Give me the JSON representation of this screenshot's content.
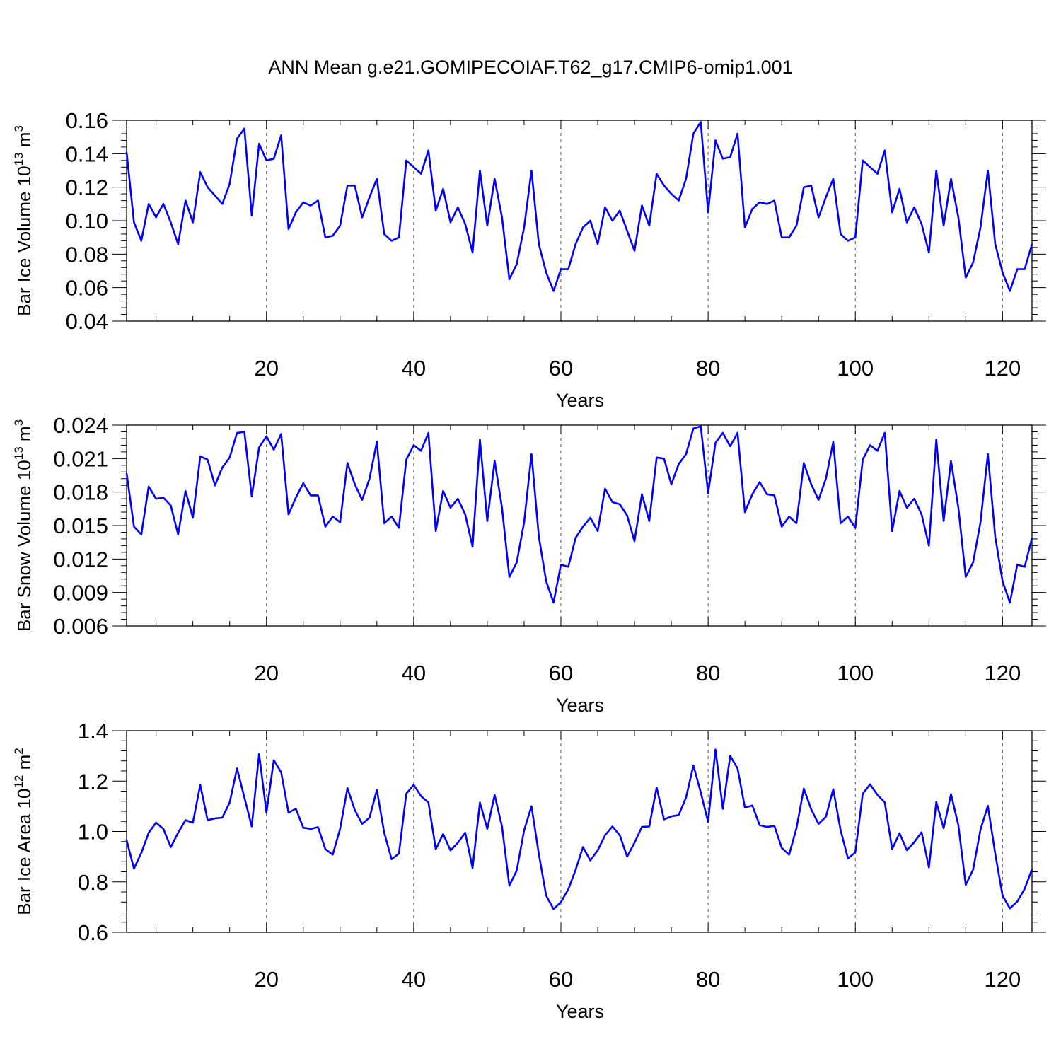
{
  "title": "ANN Mean g.e21.GOMIPECOIAF.T62_g17.CMIP6-omip1.001",
  "colors": {
    "series": "#0000ff",
    "axis": "#000000",
    "gridline": "#555555"
  },
  "chart_data": [
    {
      "type": "line",
      "ylabel_main": "Bar Ice Volume 10",
      "ylabel_sup1": "13",
      "ylabel_mid": " m",
      "ylabel_sup2": "3",
      "xlabel": "Years",
      "xlim": [
        1,
        124
      ],
      "ylim": [
        0.04,
        0.16
      ],
      "xticks": [
        20,
        40,
        60,
        80,
        100,
        120
      ],
      "yticks": [
        0.04,
        0.06,
        0.08,
        0.1,
        0.12,
        0.14,
        0.16
      ],
      "ytick_labels": [
        "0.04",
        "0.06",
        "0.08",
        "0.10",
        "0.12",
        "0.14",
        "0.16"
      ],
      "xtick_labels": [
        "20",
        "40",
        "60",
        "80",
        "100",
        "120"
      ],
      "grid": "dashed vertical at x ticks",
      "values": [
        0.141,
        0.099,
        0.088,
        0.11,
        0.102,
        0.11,
        0.099,
        0.086,
        0.112,
        0.099,
        0.129,
        0.12,
        0.115,
        0.11,
        0.122,
        0.149,
        0.155,
        0.103,
        0.146,
        0.136,
        0.137,
        0.151,
        0.095,
        0.105,
        0.111,
        0.109,
        0.112,
        0.09,
        0.091,
        0.097,
        0.121,
        0.121,
        0.102,
        0.114,
        0.125,
        0.092,
        0.088,
        0.09,
        0.136,
        0.132,
        0.128,
        0.142,
        0.106,
        0.119,
        0.099,
        0.108,
        0.098,
        0.081,
        0.13,
        0.097,
        0.125,
        0.102,
        0.065,
        0.074,
        0.096,
        0.13,
        0.086,
        0.069,
        0.058,
        0.071,
        0.071,
        0.086,
        0.096,
        0.1,
        0.086,
        0.108,
        0.1,
        0.106,
        0.094,
        0.082,
        0.109,
        0.097,
        0.128,
        0.121,
        0.116,
        0.112,
        0.125,
        0.152,
        0.159,
        0.105,
        0.148,
        0.137,
        0.138,
        0.152,
        0.096,
        0.107,
        0.111,
        0.11,
        0.112,
        0.09,
        0.09,
        0.097,
        0.12,
        0.121,
        0.102,
        0.114,
        0.125,
        0.092,
        0.088,
        0.09,
        0.136,
        0.132,
        0.128,
        0.142,
        0.105,
        0.119,
        0.099,
        0.108,
        0.098,
        0.081,
        0.13,
        0.097,
        0.125,
        0.102,
        0.066,
        0.075,
        0.096,
        0.13,
        0.086,
        0.069,
        0.058,
        0.071,
        0.071,
        0.086
      ]
    },
    {
      "type": "line",
      "ylabel_main": "Bar Snow Volume 10",
      "ylabel_sup1": "13",
      "ylabel_mid": " m",
      "ylabel_sup2": "3",
      "xlabel": "Years",
      "xlim": [
        1,
        124
      ],
      "ylim": [
        0.006,
        0.024
      ],
      "xticks": [
        20,
        40,
        60,
        80,
        100,
        120
      ],
      "yticks": [
        0.006,
        0.009,
        0.012,
        0.015,
        0.018,
        0.021,
        0.024
      ],
      "ytick_labels": [
        "0.006",
        "0.009",
        "0.012",
        "0.015",
        "0.018",
        "0.021",
        "0.024"
      ],
      "xtick_labels": [
        "20",
        "40",
        "60",
        "80",
        "100",
        "120"
      ],
      "grid": "dashed vertical at x ticks",
      "values": [
        0.0197,
        0.0149,
        0.0142,
        0.0185,
        0.0174,
        0.0175,
        0.0168,
        0.0142,
        0.0181,
        0.0157,
        0.0212,
        0.0209,
        0.0186,
        0.0202,
        0.0211,
        0.0233,
        0.0234,
        0.0176,
        0.022,
        0.023,
        0.0218,
        0.0232,
        0.016,
        0.0175,
        0.0188,
        0.0177,
        0.0177,
        0.0149,
        0.0158,
        0.0153,
        0.0206,
        0.0187,
        0.0173,
        0.0192,
        0.0225,
        0.0152,
        0.0158,
        0.0148,
        0.0209,
        0.0222,
        0.0217,
        0.0233,
        0.0145,
        0.0181,
        0.0166,
        0.0174,
        0.016,
        0.0131,
        0.0227,
        0.0154,
        0.0208,
        0.0166,
        0.0104,
        0.0117,
        0.0153,
        0.0214,
        0.014,
        0.01,
        0.0081,
        0.0115,
        0.0113,
        0.0139,
        0.0149,
        0.0157,
        0.0145,
        0.0183,
        0.0171,
        0.0169,
        0.0159,
        0.0136,
        0.0178,
        0.0154,
        0.0211,
        0.021,
        0.0187,
        0.0205,
        0.0214,
        0.0237,
        0.0239,
        0.0179,
        0.0224,
        0.0233,
        0.0221,
        0.0233,
        0.0162,
        0.0178,
        0.0189,
        0.0178,
        0.0177,
        0.0149,
        0.0158,
        0.0152,
        0.0206,
        0.0187,
        0.0173,
        0.0192,
        0.0225,
        0.0152,
        0.0158,
        0.0148,
        0.0209,
        0.0222,
        0.0217,
        0.0233,
        0.0145,
        0.0181,
        0.0166,
        0.0174,
        0.016,
        0.0132,
        0.0227,
        0.0154,
        0.0208,
        0.0166,
        0.0104,
        0.0117,
        0.0153,
        0.0214,
        0.014,
        0.01,
        0.0081,
        0.0115,
        0.0113,
        0.0139
      ]
    },
    {
      "type": "line",
      "ylabel_main": "Bar Ice Area 10",
      "ylabel_sup1": "12",
      "ylabel_mid": " m",
      "ylabel_sup2": "2",
      "xlabel": "Years",
      "xlim": [
        1,
        124
      ],
      "ylim": [
        0.6,
        1.4
      ],
      "xticks": [
        20,
        40,
        60,
        80,
        100,
        120
      ],
      "yticks": [
        0.6,
        0.8,
        1.0,
        1.2,
        1.4
      ],
      "ytick_labels": [
        "0.6",
        "0.8",
        "1.0",
        "1.2",
        "1.4"
      ],
      "xtick_labels": [
        "20",
        "40",
        "60",
        "80",
        "100",
        "120"
      ],
      "grid": "dashed vertical at x ticks",
      "values": [
        0.965,
        0.853,
        0.915,
        0.995,
        1.035,
        1.01,
        0.938,
        0.995,
        1.045,
        1.035,
        1.185,
        1.045,
        1.052,
        1.055,
        1.115,
        1.25,
        1.135,
        1.02,
        1.308,
        1.075,
        1.283,
        1.235,
        1.075,
        1.09,
        1.015,
        1.01,
        1.017,
        0.93,
        0.908,
        1.01,
        1.172,
        1.085,
        1.03,
        1.055,
        1.165,
        0.995,
        0.89,
        0.912,
        1.15,
        1.185,
        1.14,
        1.115,
        0.93,
        0.99,
        0.925,
        0.955,
        0.995,
        0.855,
        1.115,
        1.01,
        1.145,
        1.02,
        0.785,
        0.845,
        1.005,
        1.1,
        0.91,
        0.745,
        0.692,
        0.72,
        0.77,
        0.848,
        0.938,
        0.885,
        0.925,
        0.985,
        1.02,
        0.985,
        0.9,
        0.955,
        1.018,
        1.02,
        1.175,
        1.048,
        1.06,
        1.065,
        1.135,
        1.262,
        1.155,
        1.038,
        1.325,
        1.09,
        1.3,
        1.25,
        1.095,
        1.103,
        1.025,
        1.018,
        1.022,
        0.935,
        0.908,
        1.013,
        1.17,
        1.088,
        1.03,
        1.058,
        1.168,
        1.005,
        0.893,
        0.917,
        1.15,
        1.187,
        1.145,
        1.115,
        0.93,
        0.993,
        0.926,
        0.957,
        0.997,
        0.857,
        1.117,
        1.013,
        1.148,
        1.025,
        0.788,
        0.848,
        1.008,
        1.102,
        0.912,
        0.745,
        0.695,
        0.722,
        0.772,
        0.85
      ]
    }
  ]
}
